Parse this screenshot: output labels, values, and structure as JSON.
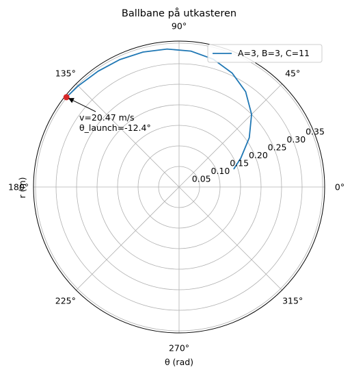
{
  "chart_data": {
    "type": "line",
    "projection": "polar",
    "title": "Ballbane på utkasteren",
    "xlabel": "θ (rad)",
    "ylabel": "r (m)",
    "rlim": [
      0,
      0.355
    ],
    "r_ticks": [
      0.05,
      0.1,
      0.15,
      0.2,
      0.25,
      0.3,
      0.35
    ],
    "r_tick_labels": [
      "0.05",
      "0.10",
      "0.15",
      "0.20",
      "0.25",
      "0.30",
      "0.35"
    ],
    "theta_ticks_deg": [
      0,
      45,
      90,
      135,
      180,
      225,
      270,
      315
    ],
    "theta_tick_labels": [
      "0°",
      "45°",
      "90°",
      "135°",
      "180°",
      "225°",
      "270°",
      "315°"
    ],
    "grid": true,
    "legend_position": "top-right",
    "series": [
      {
        "name": "A=3, B=3, C=11",
        "color": "#1f77b4",
        "theta_deg": [
          18,
          25,
          35,
          45,
          55,
          65,
          75,
          85,
          95,
          105,
          115,
          125,
          135,
          141.5
        ],
        "r": [
          0.14,
          0.166,
          0.209,
          0.25,
          0.283,
          0.306,
          0.322,
          0.332,
          0.337,
          0.34,
          0.342,
          0.344,
          0.348,
          0.351
        ]
      }
    ],
    "marker": {
      "theta_deg": 141.5,
      "r": 0.351,
      "color": "#d62728"
    },
    "annotation": {
      "line1": "v=20.47 m/s",
      "line2": "θ_launch=-12.4°",
      "arrow": true
    }
  }
}
